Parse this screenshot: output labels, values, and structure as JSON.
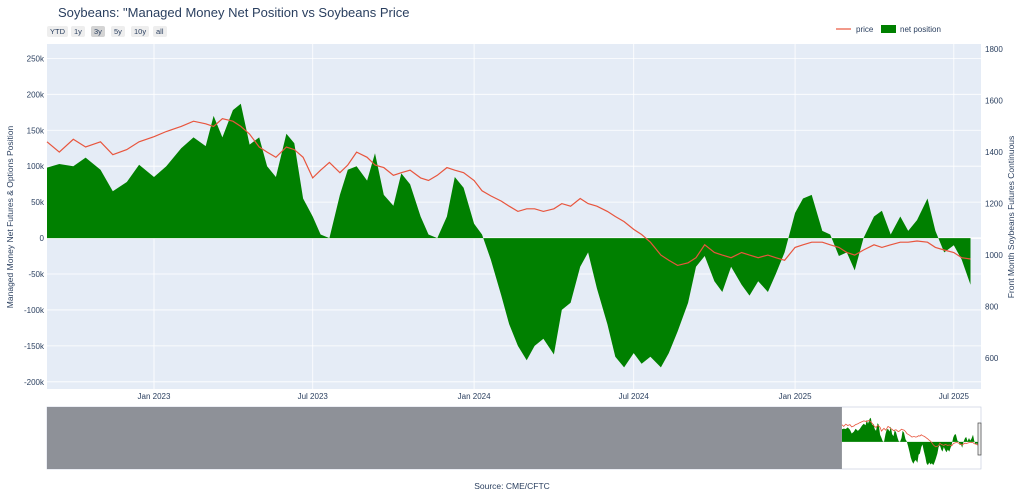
{
  "title": "Soybeans: \"Managed Money Net Position vs Soybeans Price",
  "source": "Source: CME/CFTC",
  "range_selector": {
    "buttons": [
      "YTD",
      "1y",
      "3y",
      "5y",
      "10y",
      "all"
    ],
    "active": "3y"
  },
  "legend": {
    "price_label": "price",
    "net_label": "net position"
  },
  "colors": {
    "price_line": "#e8553d",
    "net_fill": "#008000",
    "plot_bg": "#e5ecf6",
    "grid": "#ffffff",
    "text": "#2a3f5f",
    "rangeslider_mask": "#888b92"
  },
  "chart_data": {
    "type": "area",
    "title": "Soybeans: \"Managed Money Net Position vs Soybeans Price",
    "x_range": [
      "2022-09-01",
      "2025-08-01"
    ],
    "x_ticks": [
      {
        "date": "2023-01-01",
        "label": "Jan 2023"
      },
      {
        "date": "2023-07-01",
        "label": "Jul 2023"
      },
      {
        "date": "2024-01-01",
        "label": "Jan 2024"
      },
      {
        "date": "2024-07-01",
        "label": "Jul 2024"
      },
      {
        "date": "2025-01-01",
        "label": "Jan 2025"
      },
      {
        "date": "2025-07-01",
        "label": "Jul 2025"
      }
    ],
    "y_left": {
      "label": "Managed Money Net Futures & Options Position",
      "range": [
        -210000,
        270000
      ],
      "ticks": [
        {
          "value": -200000,
          "label": "-200k"
        },
        {
          "value": -150000,
          "label": "-150k"
        },
        {
          "value": -100000,
          "label": "-100k"
        },
        {
          "value": -50000,
          "label": "-50k"
        },
        {
          "value": 0,
          "label": "0"
        },
        {
          "value": 50000,
          "label": "50k"
        },
        {
          "value": 100000,
          "label": "100k"
        },
        {
          "value": 150000,
          "label": "150k"
        },
        {
          "value": 200000,
          "label": "200k"
        },
        {
          "value": 250000,
          "label": "250k"
        }
      ]
    },
    "y_right": {
      "label": "Front Month Soybeans Futures Continuous",
      "range": [
        480,
        1820
      ],
      "ticks": [
        {
          "value": 600,
          "label": "600"
        },
        {
          "value": 800,
          "label": "800"
        },
        {
          "value": 1000,
          "label": "1000"
        },
        {
          "value": 1200,
          "label": "1200"
        },
        {
          "value": 1400,
          "label": "1400"
        },
        {
          "value": 1600,
          "label": "1600"
        },
        {
          "value": 1800,
          "label": "1800"
        }
      ]
    },
    "series": [
      {
        "name": "net position",
        "axis": "left",
        "style": "area",
        "points": [
          [
            "2022-09-01",
            98000
          ],
          [
            "2022-09-15",
            103000
          ],
          [
            "2022-10-01",
            100000
          ],
          [
            "2022-10-15",
            112000
          ],
          [
            "2022-11-01",
            95000
          ],
          [
            "2022-11-15",
            65000
          ],
          [
            "2022-12-01",
            78000
          ],
          [
            "2022-12-15",
            102000
          ],
          [
            "2023-01-01",
            85000
          ],
          [
            "2023-01-15",
            100000
          ],
          [
            "2023-02-01",
            125000
          ],
          [
            "2023-02-15",
            140000
          ],
          [
            "2023-03-01",
            128000
          ],
          [
            "2023-03-10",
            170000
          ],
          [
            "2023-03-20",
            140000
          ],
          [
            "2023-04-01",
            178000
          ],
          [
            "2023-04-10",
            187000
          ],
          [
            "2023-04-20",
            130000
          ],
          [
            "2023-05-01",
            140000
          ],
          [
            "2023-05-10",
            100000
          ],
          [
            "2023-05-20",
            85000
          ],
          [
            "2023-06-01",
            145000
          ],
          [
            "2023-06-10",
            132000
          ],
          [
            "2023-06-20",
            55000
          ],
          [
            "2023-07-01",
            30000
          ],
          [
            "2023-07-10",
            5000
          ],
          [
            "2023-07-20",
            0
          ],
          [
            "2023-08-01",
            60000
          ],
          [
            "2023-08-10",
            95000
          ],
          [
            "2023-08-20",
            100000
          ],
          [
            "2023-09-01",
            80000
          ],
          [
            "2023-09-10",
            118000
          ],
          [
            "2023-09-20",
            60000
          ],
          [
            "2023-10-01",
            45000
          ],
          [
            "2023-10-10",
            90000
          ],
          [
            "2023-10-20",
            75000
          ],
          [
            "2023-11-01",
            30000
          ],
          [
            "2023-11-10",
            5000
          ],
          [
            "2023-11-20",
            0
          ],
          [
            "2023-12-01",
            30000
          ],
          [
            "2023-12-10",
            85000
          ],
          [
            "2023-12-20",
            70000
          ],
          [
            "2024-01-01",
            20000
          ],
          [
            "2024-01-10",
            5000
          ],
          [
            "2024-01-20",
            -30000
          ],
          [
            "2024-02-01",
            -80000
          ],
          [
            "2024-02-10",
            -120000
          ],
          [
            "2024-02-20",
            -150000
          ],
          [
            "2024-03-01",
            -170000
          ],
          [
            "2024-03-10",
            -150000
          ],
          [
            "2024-03-20",
            -140000
          ],
          [
            "2024-04-01",
            -162000
          ],
          [
            "2024-04-10",
            -100000
          ],
          [
            "2024-04-20",
            -90000
          ],
          [
            "2024-05-01",
            -40000
          ],
          [
            "2024-05-10",
            -20000
          ],
          [
            "2024-05-20",
            -70000
          ],
          [
            "2024-06-01",
            -120000
          ],
          [
            "2024-06-10",
            -165000
          ],
          [
            "2024-06-20",
            -180000
          ],
          [
            "2024-07-01",
            -160000
          ],
          [
            "2024-07-10",
            -175000
          ],
          [
            "2024-07-20",
            -165000
          ],
          [
            "2024-08-01",
            -180000
          ],
          [
            "2024-08-10",
            -160000
          ],
          [
            "2024-08-20",
            -130000
          ],
          [
            "2024-09-01",
            -90000
          ],
          [
            "2024-09-10",
            -40000
          ],
          [
            "2024-09-20",
            -25000
          ],
          [
            "2024-10-01",
            -60000
          ],
          [
            "2024-10-10",
            -75000
          ],
          [
            "2024-10-20",
            -40000
          ],
          [
            "2024-11-01",
            -65000
          ],
          [
            "2024-11-10",
            -80000
          ],
          [
            "2024-11-20",
            -60000
          ],
          [
            "2024-12-01",
            -75000
          ],
          [
            "2024-12-10",
            -50000
          ],
          [
            "2024-12-20",
            -20000
          ],
          [
            "2025-01-01",
            35000
          ],
          [
            "2025-01-10",
            55000
          ],
          [
            "2025-01-20",
            60000
          ],
          [
            "2025-02-01",
            10000
          ],
          [
            "2025-02-10",
            5000
          ],
          [
            "2025-02-20",
            -25000
          ],
          [
            "2025-03-01",
            -20000
          ],
          [
            "2025-03-10",
            -45000
          ],
          [
            "2025-03-20",
            0
          ],
          [
            "2025-04-01",
            30000
          ],
          [
            "2025-04-10",
            38000
          ],
          [
            "2025-04-20",
            5000
          ],
          [
            "2025-05-01",
            30000
          ],
          [
            "2025-05-10",
            10000
          ],
          [
            "2025-05-20",
            25000
          ],
          [
            "2025-06-01",
            55000
          ],
          [
            "2025-06-10",
            10000
          ],
          [
            "2025-06-20",
            -20000
          ],
          [
            "2025-07-01",
            -10000
          ],
          [
            "2025-07-10",
            -30000
          ],
          [
            "2025-07-20",
            -65000
          ]
        ]
      },
      {
        "name": "price",
        "axis": "right",
        "style": "line",
        "points": [
          [
            "2022-09-01",
            1440
          ],
          [
            "2022-09-15",
            1400
          ],
          [
            "2022-10-01",
            1450
          ],
          [
            "2022-10-15",
            1420
          ],
          [
            "2022-11-01",
            1440
          ],
          [
            "2022-11-15",
            1390
          ],
          [
            "2022-12-01",
            1410
          ],
          [
            "2022-12-15",
            1440
          ],
          [
            "2023-01-01",
            1460
          ],
          [
            "2023-01-15",
            1480
          ],
          [
            "2023-02-01",
            1500
          ],
          [
            "2023-02-15",
            1520
          ],
          [
            "2023-03-01",
            1510
          ],
          [
            "2023-03-10",
            1500
          ],
          [
            "2023-03-20",
            1530
          ],
          [
            "2023-04-01",
            1520
          ],
          [
            "2023-04-10",
            1500
          ],
          [
            "2023-04-20",
            1470
          ],
          [
            "2023-05-01",
            1420
          ],
          [
            "2023-05-10",
            1400
          ],
          [
            "2023-05-20",
            1380
          ],
          [
            "2023-06-01",
            1420
          ],
          [
            "2023-06-10",
            1410
          ],
          [
            "2023-06-20",
            1380
          ],
          [
            "2023-07-01",
            1300
          ],
          [
            "2023-07-10",
            1330
          ],
          [
            "2023-07-20",
            1360
          ],
          [
            "2023-08-01",
            1320
          ],
          [
            "2023-08-10",
            1350
          ],
          [
            "2023-08-20",
            1400
          ],
          [
            "2023-09-01",
            1380
          ],
          [
            "2023-09-10",
            1350
          ],
          [
            "2023-09-20",
            1340
          ],
          [
            "2023-10-01",
            1310
          ],
          [
            "2023-10-10",
            1320
          ],
          [
            "2023-10-20",
            1330
          ],
          [
            "2023-11-01",
            1300
          ],
          [
            "2023-11-10",
            1290
          ],
          [
            "2023-11-20",
            1310
          ],
          [
            "2023-12-01",
            1340
          ],
          [
            "2023-12-10",
            1330
          ],
          [
            "2023-12-20",
            1320
          ],
          [
            "2024-01-01",
            1290
          ],
          [
            "2024-01-10",
            1250
          ],
          [
            "2024-01-20",
            1230
          ],
          [
            "2024-02-01",
            1210
          ],
          [
            "2024-02-10",
            1190
          ],
          [
            "2024-02-20",
            1170
          ],
          [
            "2024-03-01",
            1180
          ],
          [
            "2024-03-10",
            1180
          ],
          [
            "2024-03-20",
            1170
          ],
          [
            "2024-04-01",
            1180
          ],
          [
            "2024-04-10",
            1200
          ],
          [
            "2024-04-20",
            1190
          ],
          [
            "2024-05-01",
            1220
          ],
          [
            "2024-05-10",
            1200
          ],
          [
            "2024-05-20",
            1190
          ],
          [
            "2024-06-01",
            1170
          ],
          [
            "2024-06-10",
            1150
          ],
          [
            "2024-06-20",
            1130
          ],
          [
            "2024-07-01",
            1100
          ],
          [
            "2024-07-10",
            1080
          ],
          [
            "2024-07-20",
            1050
          ],
          [
            "2024-08-01",
            1000
          ],
          [
            "2024-08-10",
            980
          ],
          [
            "2024-08-20",
            960
          ],
          [
            "2024-09-01",
            970
          ],
          [
            "2024-09-10",
            990
          ],
          [
            "2024-09-20",
            1040
          ],
          [
            "2024-10-01",
            1010
          ],
          [
            "2024-10-10",
            1000
          ],
          [
            "2024-10-20",
            990
          ],
          [
            "2024-11-01",
            1010
          ],
          [
            "2024-11-10",
            1000
          ],
          [
            "2024-11-20",
            990
          ],
          [
            "2024-12-01",
            1000
          ],
          [
            "2024-12-10",
            990
          ],
          [
            "2024-12-20",
            980
          ],
          [
            "2025-01-01",
            1030
          ],
          [
            "2025-01-10",
            1040
          ],
          [
            "2025-01-20",
            1050
          ],
          [
            "2025-02-01",
            1050
          ],
          [
            "2025-02-10",
            1040
          ],
          [
            "2025-02-20",
            1030
          ],
          [
            "2025-03-01",
            1010
          ],
          [
            "2025-03-10",
            1000
          ],
          [
            "2025-03-20",
            1020
          ],
          [
            "2025-04-01",
            1040
          ],
          [
            "2025-04-10",
            1030
          ],
          [
            "2025-04-20",
            1040
          ],
          [
            "2025-05-01",
            1050
          ],
          [
            "2025-05-10",
            1050
          ],
          [
            "2025-05-20",
            1055
          ],
          [
            "2025-06-01",
            1050
          ],
          [
            "2025-06-10",
            1030
          ],
          [
            "2025-06-20",
            1020
          ],
          [
            "2025-07-01",
            1010
          ],
          [
            "2025-07-10",
            990
          ],
          [
            "2025-07-20",
            985
          ]
        ]
      }
    ],
    "range_slider": {
      "full_range": [
        "2006-01-01",
        "2025-08-01"
      ],
      "selected": [
        "2022-09-01",
        "2025-08-01"
      ]
    },
    "legend_position": "top-right",
    "grid": true
  }
}
